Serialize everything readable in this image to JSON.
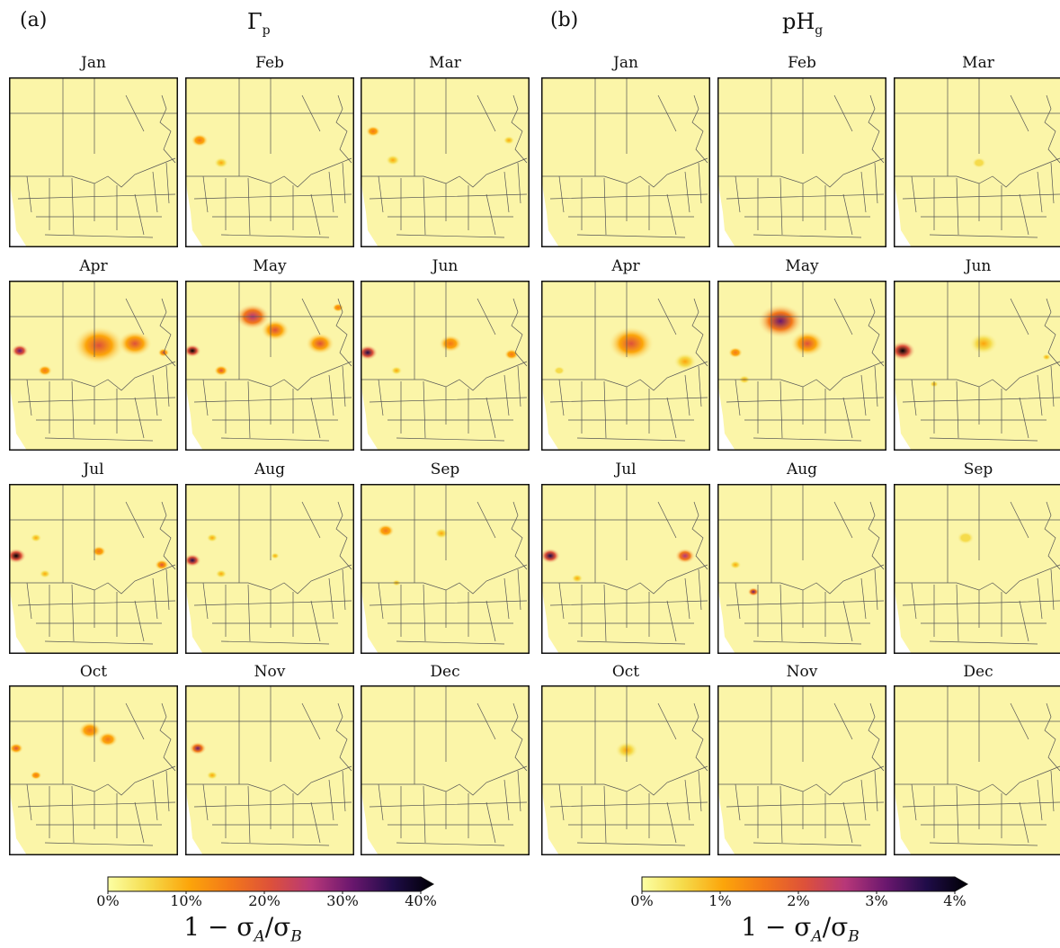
{
  "panels": [
    {
      "letter": "(a)",
      "title_main": "Γ",
      "title_sub": "p",
      "months": [
        "Jan",
        "Feb",
        "Mar",
        "Apr",
        "May",
        "Jun",
        "Jul",
        "Aug",
        "Sep",
        "Oct",
        "Nov",
        "Dec"
      ],
      "colorbar": {
        "ticks": [
          "0%",
          "10%",
          "20%",
          "30%",
          "40%"
        ],
        "label_main": "1 − σ",
        "label_a": "A",
        "label_mid": "/σ",
        "label_b": "B"
      }
    },
    {
      "letter": "(b)",
      "title_main": "pH",
      "title_sub": "g",
      "months": [
        "Jan",
        "Feb",
        "Mar",
        "Apr",
        "May",
        "Jun",
        "Jul",
        "Aug",
        "Sep",
        "Oct",
        "Nov",
        "Dec"
      ],
      "colorbar": {
        "ticks": [
          "0%",
          "1%",
          "2%",
          "3%",
          "4%"
        ],
        "label_main": "1 − σ",
        "label_a": "A",
        "label_mid": "/σ",
        "label_b": "B"
      }
    }
  ],
  "colors": {
    "map_background": "#fbf5a8",
    "outside_domain": "#ffffff",
    "boundary_line": "#555555",
    "colormap": [
      "#fcffa4",
      "#f5db4b",
      "#fca50a",
      "#f37819",
      "#dd513a",
      "#b73779",
      "#6a176e",
      "#1f0c48",
      "#000004"
    ]
  }
}
